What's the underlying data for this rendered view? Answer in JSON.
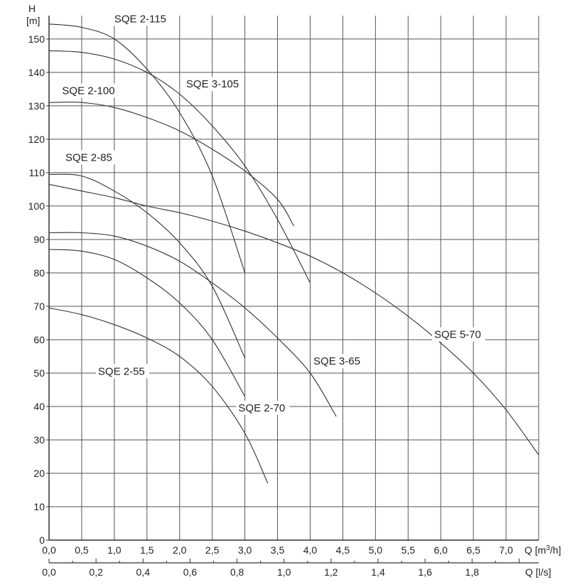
{
  "chart_data": {
    "type": "line",
    "title": "",
    "ylabel_top": "H",
    "ylabel_unit": "[m]",
    "xlabel_q_m3h": "Q [m",
    "xlabel_q_m3h_sup": "3",
    "xlabel_q_m3h_end": "/h]",
    "xlabel_q_ls": "Q [l/s]",
    "grid": true,
    "xlim_m3h": [
      0,
      7.5
    ],
    "ylim": [
      0,
      157
    ],
    "xlim_ls": [
      0,
      2.083
    ],
    "x_ticks_m3h": [
      "0,0",
      "0,5",
      "1,0",
      "1,5",
      "2,0",
      "2,5",
      "3,0",
      "3,5",
      "4,0",
      "4,5",
      "5,0",
      "5,5",
      "6,0",
      "6,5",
      "7,0"
    ],
    "x_ticks_ls": [
      "0,0",
      "0,2",
      "0,4",
      "0,6",
      "0,8",
      "1,0",
      "1,2",
      "1,4",
      "1,6",
      "1,8"
    ],
    "y_ticks": [
      "0",
      "10",
      "20",
      "30",
      "40",
      "50",
      "60",
      "70",
      "80",
      "90",
      "100",
      "110",
      "120",
      "130",
      "140",
      "150"
    ],
    "series": [
      {
        "name": "SQE 2-115",
        "label_at": [
          1.0,
          155
        ],
        "points": [
          [
            0,
            154.5
          ],
          [
            0.5,
            153.5
          ],
          [
            1.0,
            150
          ],
          [
            1.5,
            141
          ],
          [
            2.0,
            128
          ],
          [
            2.5,
            109
          ],
          [
            3.0,
            80
          ]
        ]
      },
      {
        "name": "SQE 3-105",
        "label_at": [
          2.1,
          135.5
        ],
        "points": [
          [
            0,
            146.5
          ],
          [
            0.5,
            146
          ],
          [
            1.0,
            144
          ],
          [
            1.5,
            140
          ],
          [
            2.0,
            133.5
          ],
          [
            2.5,
            124
          ],
          [
            3.0,
            112
          ],
          [
            3.5,
            96
          ],
          [
            4.0,
            77
          ]
        ]
      },
      {
        "name": "SQE 2-100",
        "label_at": [
          0.2,
          133.5
        ],
        "points": [
          [
            0,
            131
          ],
          [
            0.5,
            131
          ],
          [
            1.0,
            129.5
          ],
          [
            1.5,
            126.5
          ],
          [
            2.0,
            122.5
          ],
          [
            2.5,
            117
          ],
          [
            3.0,
            110.5
          ],
          [
            3.5,
            102
          ],
          [
            3.75,
            94
          ]
        ]
      },
      {
        "name": "SQE 2-85",
        "label_at": [
          0.25,
          113.5
        ],
        "points": [
          [
            0,
            109.5
          ],
          [
            0.5,
            109
          ],
          [
            1.0,
            104.5
          ],
          [
            1.5,
            98
          ],
          [
            2.0,
            89
          ],
          [
            2.5,
            76
          ],
          [
            3.0,
            54.5
          ]
        ]
      },
      {
        "name": "SQE 5-70",
        "label_at": [
          5.9,
          60.5
        ],
        "points": [
          [
            0,
            106.5
          ],
          [
            0.5,
            104.5
          ],
          [
            1.0,
            102.5
          ],
          [
            1.5,
            100
          ],
          [
            2.0,
            98
          ],
          [
            2.5,
            95.5
          ],
          [
            3.0,
            92.5
          ],
          [
            3.5,
            89
          ],
          [
            4.0,
            85
          ],
          [
            4.5,
            80
          ],
          [
            5.0,
            74
          ],
          [
            5.5,
            67
          ],
          [
            6.0,
            59
          ],
          [
            6.5,
            50
          ],
          [
            7.0,
            39
          ],
          [
            7.5,
            25.5
          ]
        ]
      },
      {
        "name": "SQE 3-65",
        "label_at": [
          4.05,
          52.5
        ],
        "points": [
          [
            0,
            92
          ],
          [
            0.5,
            92
          ],
          [
            1.0,
            91
          ],
          [
            1.5,
            88
          ],
          [
            2.0,
            83.5
          ],
          [
            2.5,
            77
          ],
          [
            3.0,
            69.5
          ],
          [
            3.5,
            60.5
          ],
          [
            4.0,
            50
          ],
          [
            4.4,
            37
          ]
        ]
      },
      {
        "name": "SQE 2-70",
        "label_at": [
          2.9,
          38.5
        ],
        "points": [
          [
            0,
            87
          ],
          [
            0.5,
            86.5
          ],
          [
            1.0,
            84
          ],
          [
            1.5,
            78.5
          ],
          [
            2.0,
            71
          ],
          [
            2.5,
            60
          ],
          [
            3.0,
            43
          ]
        ]
      },
      {
        "name": "SQE 2-55",
        "label_at": [
          0.75,
          49.5
        ],
        "points": [
          [
            0,
            69.5
          ],
          [
            0.5,
            67.5
          ],
          [
            1.0,
            64.5
          ],
          [
            1.5,
            60.5
          ],
          [
            2.0,
            55
          ],
          [
            2.5,
            46
          ],
          [
            3.0,
            32
          ],
          [
            3.35,
            17
          ]
        ]
      }
    ]
  }
}
